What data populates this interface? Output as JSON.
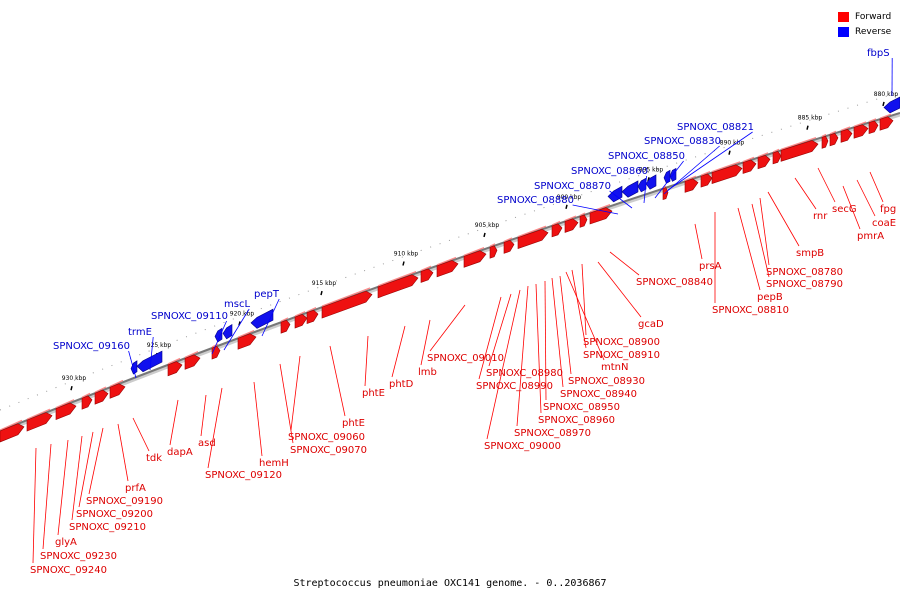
{
  "legend": {
    "forward_label": "Forward",
    "reverse_label": "Reverse",
    "forward_color": "#ff0000",
    "reverse_color": "#0000ff"
  },
  "caption": "Streptococcus pneumoniae OXC141 genome. - 0..2036867",
  "ticks": [
    "880 kbp",
    "885 kbp",
    "890 kbp",
    "895 kbp",
    "900 kbp",
    "905 kbp",
    "910 kbp",
    "915 kbp",
    "920 kbp",
    "925 kbp",
    "930 kbp"
  ],
  "reverse_labels": [
    "fbpS",
    "SPNOXC_08821",
    "SPNOXC_08830",
    "SPNOXC_08850",
    "SPNOXC_08860",
    "SPNOXC_08870",
    "SPNOXC_08880",
    "pepT",
    "mscL",
    "SPNOXC_09110",
    "trmE",
    "SPNOXC_09160"
  ],
  "forward_labels": [
    "fpg",
    "coaE",
    "pmrA",
    "secG",
    "rnr",
    "smpB",
    "SPNOXC_08780",
    "SPNOXC_08790",
    "pepB",
    "SPNOXC_08810",
    "prsA",
    "SPNOXC_08840",
    "gcaD",
    "SPNOXC_08900",
    "SPNOXC_08910",
    "mtnN",
    "SPNOXC_08930",
    "SPNOXC_08940",
    "SPNOXC_08950",
    "SPNOXC_08960",
    "SPNOXC_08970",
    "SPNOXC_09000",
    "SPNOXC_08980",
    "SPNOXC_08990",
    "SPNOXC_09010",
    "lmb",
    "phtD",
    "phtE",
    "phtE",
    "SPNOXC_09060",
    "SPNOXC_09070",
    "hemH",
    "SPNOXC_09120",
    "asd",
    "dapA",
    "tdk",
    "prfA",
    "SPNOXC_09190",
    "SPNOXC_09200",
    "SPNOXC_09210",
    "glyA",
    "SPNOXC_09230",
    "SPNOXC_09240"
  ]
}
